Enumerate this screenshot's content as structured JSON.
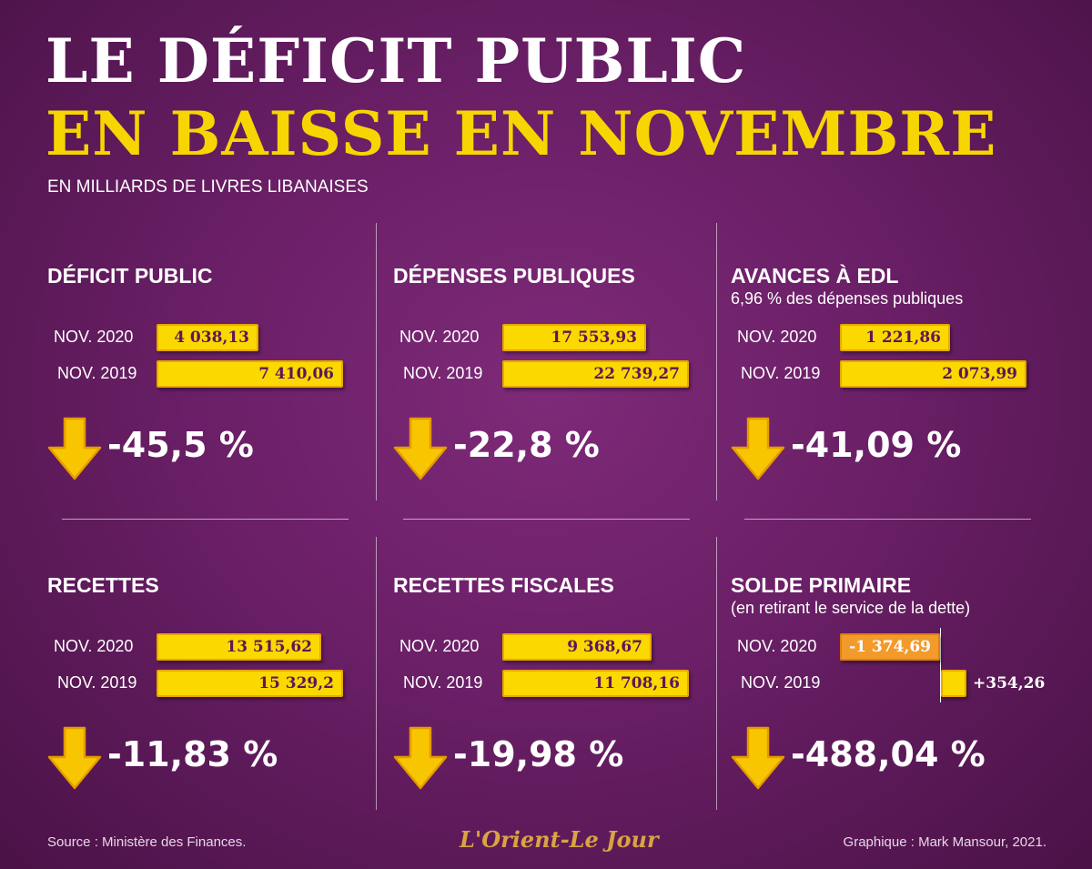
{
  "header": {
    "title_line1": "LE DÉFICIT PUBLIC",
    "title_line2": "EN BAISSE EN NOVEMBRE",
    "subtitle": "EN MILLIARDS DE LIVRES LIBANAISES"
  },
  "colors": {
    "background": "#6a1f66",
    "accent_yellow": "#f7d500",
    "bar_fill": "#fbd800",
    "negative_bar_fill": "#f39a2c",
    "arrow_fill": "#f7c600"
  },
  "chart_data": [
    {
      "type": "bar",
      "title": "DÉFICIT PUBLIC",
      "subtitle": "",
      "categories": [
        "NOV. 2020",
        "NOV. 2019"
      ],
      "values": [
        4038.13,
        7410.06
      ],
      "value_labels": [
        "4 038,13",
        "7 410,06"
      ],
      "change": "-45,5 %",
      "change_icon": "down-arrow-icon"
    },
    {
      "type": "bar",
      "title": "DÉPENSES PUBLIQUES",
      "subtitle": "",
      "categories": [
        "NOV. 2020",
        "NOV. 2019"
      ],
      "values": [
        17553.93,
        22739.27
      ],
      "value_labels": [
        "17 553,93",
        "22 739,27"
      ],
      "change": "-22,8 %",
      "change_icon": "down-arrow-icon"
    },
    {
      "type": "bar",
      "title": "AVANCES À EDL",
      "subtitle": "6,96 % des dépenses publiques",
      "categories": [
        "NOV. 2020",
        "NOV. 2019"
      ],
      "values": [
        1221.86,
        2073.99
      ],
      "value_labels": [
        "1 221,86",
        "2 073,99"
      ],
      "change": "-41,09 %",
      "change_icon": "down-arrow-icon"
    },
    {
      "type": "bar",
      "title": "RECETTES",
      "subtitle": "",
      "categories": [
        "NOV. 2020",
        "NOV. 2019"
      ],
      "values": [
        13515.62,
        15329.2
      ],
      "value_labels": [
        "13 515,62",
        "15 329,2"
      ],
      "change": "-11,83 %",
      "change_icon": "down-arrow-icon"
    },
    {
      "type": "bar",
      "title": "RECETTES FISCALES",
      "subtitle": "",
      "categories": [
        "NOV. 2020",
        "NOV. 2019"
      ],
      "values": [
        9368.67,
        11708.16
      ],
      "value_labels": [
        "9 368,67",
        "11 708,16"
      ],
      "change": "-19,98 %",
      "change_icon": "down-arrow-icon"
    },
    {
      "type": "bar",
      "title": "SOLDE PRIMAIRE",
      "subtitle": "(en retirant le service de la dette)",
      "categories": [
        "NOV. 2020",
        "NOV. 2019"
      ],
      "values": [
        -1374.69,
        354.26
      ],
      "value_labels": [
        "-1 374,69",
        "+354,26"
      ],
      "change": "-488,04 %",
      "change_icon": "down-arrow-icon"
    }
  ],
  "footer": {
    "source": "Source : Ministère des Finances.",
    "logo": "L'Orient-Le Jour",
    "credit": "Graphique : Mark Mansour, 2021."
  }
}
